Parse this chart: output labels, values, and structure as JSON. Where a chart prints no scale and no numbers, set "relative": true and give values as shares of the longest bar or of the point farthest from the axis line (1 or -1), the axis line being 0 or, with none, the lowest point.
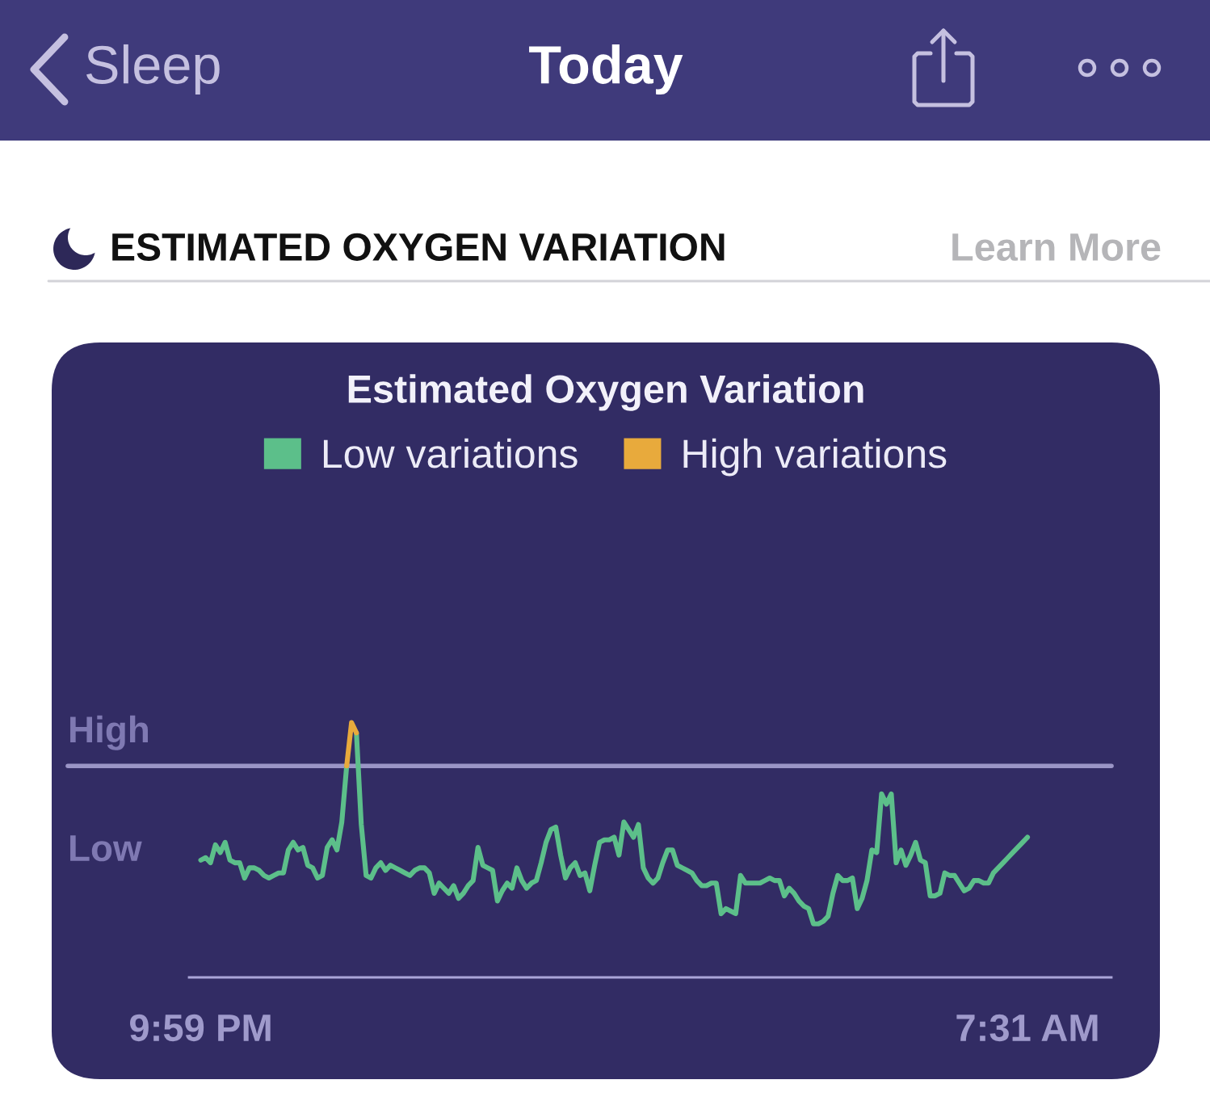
{
  "chart_data": {
    "type": "line",
    "title": "Estimated Oxygen Variation",
    "annotations": [
      "Sleep",
      "Today",
      "ESTIMATED OXYGEN VARIATION",
      "Learn More",
      "Low"
    ],
    "relative": true,
    "legend": "top",
    "categories": [
      "9:59 PM",
      null,
      null,
      null,
      null,
      null,
      null,
      null,
      null,
      null,
      null,
      null,
      null,
      null,
      null,
      null,
      null,
      null,
      null,
      null,
      null,
      null,
      null,
      null,
      null,
      null,
      null,
      null,
      null,
      null,
      null,
      null,
      null,
      null,
      null,
      null,
      null,
      null,
      null,
      null,
      null,
      null,
      null,
      null,
      null,
      null,
      null,
      null,
      null,
      null,
      null,
      null,
      null,
      null,
      null,
      null,
      null,
      null,
      null,
      null,
      null,
      null,
      null,
      null,
      null,
      null,
      null,
      null,
      null,
      null,
      null,
      null,
      null,
      null,
      null,
      null,
      null,
      null,
      null,
      null,
      null,
      null,
      null,
      null,
      null,
      null,
      null,
      null,
      null,
      null,
      null,
      null,
      null,
      null,
      null,
      null,
      null,
      null,
      null,
      null,
      null,
      null,
      null,
      null,
      null,
      null,
      null,
      null,
      null,
      null,
      null,
      null,
      null,
      null,
      null,
      null,
      null,
      null,
      null,
      null,
      null,
      null,
      null,
      null,
      null,
      null,
      null,
      null,
      null,
      null,
      null,
      null,
      null,
      null,
      null,
      null,
      null,
      null,
      null,
      null,
      null,
      null,
      null,
      null,
      null,
      null,
      null,
      null,
      null,
      null,
      null,
      null,
      null,
      null,
      null,
      null,
      null,
      null,
      null,
      null,
      null,
      null,
      null,
      null,
      null,
      null,
      null,
      null,
      null,
      null,
      "7:31 AM"
    ],
    "ref_lines": [
      {
        "axis": "y",
        "value": 0.83,
        "label": "High",
        "color": "#9a95c6"
      }
    ],
    "series": [
      {
        "name": "Low variations",
        "color": "#5cbf8a",
        "values": [
          0.46,
          0.47,
          0.45,
          0.52,
          0.49,
          0.53,
          0.46,
          0.45,
          0.45,
          0.39,
          0.43,
          0.43,
          0.42,
          0.4,
          0.39,
          0.4,
          0.41,
          0.41,
          0.5,
          0.53,
          0.5,
          0.51,
          0.44,
          0.43,
          0.39,
          0.4,
          0.51,
          0.54,
          0.5,
          0.61,
          0.83,
          null,
          0.96,
          0.6,
          0.4,
          0.39,
          0.43,
          0.45,
          0.42,
          0.44,
          0.43,
          0.42,
          0.41,
          0.4,
          0.42,
          0.43,
          0.43,
          0.41,
          0.33,
          0.37,
          0.35,
          0.33,
          0.36,
          0.31,
          0.33,
          0.36,
          0.38,
          0.51,
          0.44,
          0.43,
          0.42,
          0.3,
          0.34,
          0.37,
          0.35,
          0.43,
          0.38,
          0.35,
          0.37,
          0.38,
          0.45,
          0.53,
          0.58,
          0.59,
          0.48,
          0.39,
          0.43,
          0.45,
          0.4,
          0.41,
          0.34,
          0.44,
          0.53,
          0.54,
          0.54,
          0.55,
          0.48,
          0.61,
          0.58,
          0.55,
          0.6,
          0.43,
          0.39,
          0.37,
          0.39,
          0.45,
          0.5,
          0.5,
          0.44,
          0.43,
          0.42,
          0.41,
          0.38,
          0.36,
          0.36,
          0.37,
          0.37,
          0.25,
          0.27,
          0.26,
          0.25,
          0.4,
          0.37,
          0.37,
          0.37,
          0.37,
          0.38,
          0.39,
          0.38,
          0.38,
          0.32,
          0.35,
          0.33,
          0.3,
          0.28,
          0.27,
          0.21,
          0.21,
          0.22,
          0.24,
          0.33,
          0.4,
          0.38,
          0.38,
          0.39,
          0.27,
          0.31,
          0.38,
          0.5,
          0.49,
          0.72,
          0.68,
          0.72,
          0.45,
          0.5,
          0.44,
          0.48,
          0.53,
          0.46,
          0.45,
          0.32,
          0.32,
          0.33,
          0.41,
          0.4,
          0.4,
          0.37,
          0.34,
          0.35,
          0.38,
          0.38,
          0.37,
          0.37,
          0.41,
          0.43,
          0.45,
          0.47,
          0.49,
          0.51,
          0.53,
          0.55
        ]
      },
      {
        "name": "High variations",
        "color": "#e8aa3c",
        "values": [
          null,
          null,
          null,
          null,
          null,
          null,
          null,
          null,
          null,
          null,
          null,
          null,
          null,
          null,
          null,
          null,
          null,
          null,
          null,
          null,
          null,
          null,
          null,
          null,
          null,
          null,
          null,
          null,
          null,
          null,
          0.83,
          1.0,
          0.96,
          null,
          null,
          null,
          null,
          null,
          null,
          null,
          null,
          null,
          null,
          null,
          null,
          null,
          null,
          null,
          null,
          null,
          null,
          null,
          null,
          null,
          null,
          null,
          null,
          null,
          null,
          null,
          null,
          null,
          null,
          null,
          null,
          null,
          null,
          null,
          null,
          null,
          null,
          null,
          null,
          null,
          null,
          null,
          null,
          null,
          null,
          null,
          null,
          null,
          null,
          null,
          null,
          null,
          null,
          null,
          null,
          null,
          null,
          null,
          null,
          null,
          null,
          null,
          null,
          null,
          null,
          null,
          null,
          null,
          null,
          null,
          null,
          null,
          null,
          null,
          null,
          null,
          null,
          null,
          null,
          null,
          null,
          null,
          null,
          null,
          null,
          null,
          null,
          null,
          null,
          null,
          null,
          null,
          null,
          null,
          null,
          null,
          null,
          null,
          null,
          null,
          null,
          null,
          null,
          null,
          null,
          null,
          null,
          null,
          null,
          null,
          null,
          null,
          null,
          null,
          null,
          null,
          null,
          null,
          null,
          null,
          null,
          null,
          null,
          null,
          null,
          null,
          null,
          null,
          null,
          null,
          null,
          null,
          null,
          null,
          null,
          null,
          null
        ]
      }
    ]
  }
}
